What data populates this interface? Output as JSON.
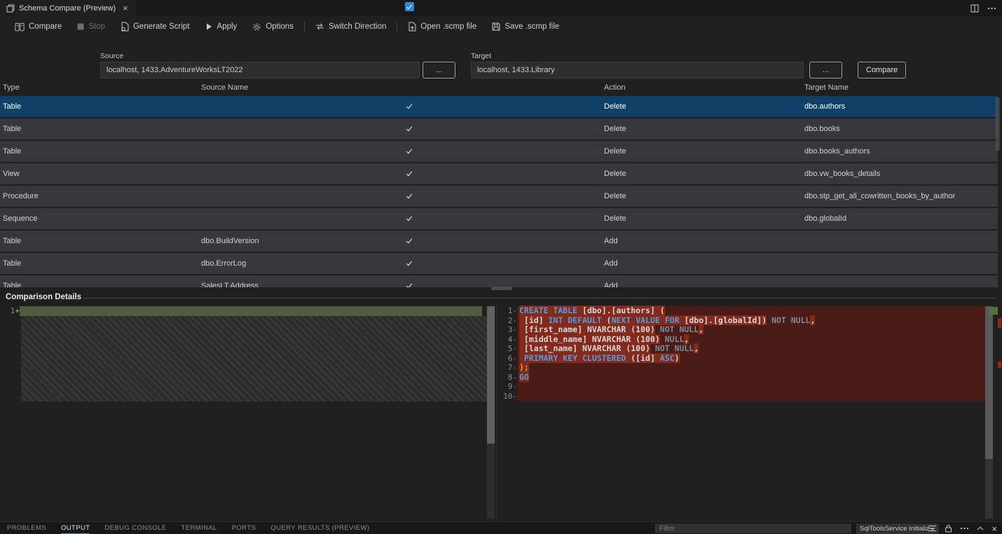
{
  "window": {
    "tab_title": "Schema Compare (Preview)",
    "tab_icon": "schema-compare-icon",
    "tab_close": "×",
    "actions": [
      "split-editor-icon",
      "more-icon"
    ]
  },
  "toolbar": {
    "items": [
      {
        "label": "Compare",
        "icon": "compare-icon",
        "disabled": false
      },
      {
        "label": "Stop",
        "icon": "stop-icon",
        "disabled": true
      },
      {
        "label": "Generate Script",
        "icon": "generate-script-icon",
        "disabled": false
      },
      {
        "label": "Apply",
        "icon": "apply-icon",
        "disabled": false
      },
      {
        "label": "Options",
        "icon": "options-icon",
        "disabled": false
      },
      {
        "separator": true
      },
      {
        "label": "Switch Direction",
        "icon": "switch-direction-icon",
        "disabled": false
      },
      {
        "separator": true
      },
      {
        "label": "Open .scmp file",
        "icon": "open-file-icon",
        "disabled": false
      },
      {
        "label": "Save .scmp file",
        "icon": "save-file-icon",
        "disabled": false
      }
    ]
  },
  "connections": {
    "source_label": "Source",
    "source_value": "localhost, 1433.AdventureWorksLT2022",
    "target_label": "Target",
    "target_value": "localhost, 1433.Library",
    "browse_label": "...",
    "compare_button": "Compare"
  },
  "grid": {
    "headers": {
      "type": "Type",
      "source_name": "Source Name",
      "action": "Action",
      "target_name": "Target Name"
    },
    "select_all_checked": true,
    "rows": [
      {
        "type": "Table",
        "source_name": "",
        "checked": true,
        "action": "Delete",
        "target_name": "dbo.authors",
        "selected": true
      },
      {
        "type": "Table",
        "source_name": "",
        "checked": true,
        "action": "Delete",
        "target_name": "dbo.books",
        "selected": false
      },
      {
        "type": "Table",
        "source_name": "",
        "checked": true,
        "action": "Delete",
        "target_name": "dbo.books_authors",
        "selected": false
      },
      {
        "type": "View",
        "source_name": "",
        "checked": true,
        "action": "Delete",
        "target_name": "dbo.vw_books_details",
        "selected": false
      },
      {
        "type": "Procedure",
        "source_name": "",
        "checked": true,
        "action": "Delete",
        "target_name": "dbo.stp_get_all_cowritten_books_by_author",
        "selected": false
      },
      {
        "type": "Sequence",
        "source_name": "",
        "checked": true,
        "action": "Delete",
        "target_name": "dbo.globalId",
        "selected": false
      },
      {
        "type": "Table",
        "source_name": "dbo.BuildVersion",
        "checked": true,
        "action": "Add",
        "target_name": "",
        "selected": false
      },
      {
        "type": "Table",
        "source_name": "dbo.ErrorLog",
        "checked": true,
        "action": "Add",
        "target_name": "",
        "selected": false
      },
      {
        "type": "Table",
        "source_name": "SalesLT.Address",
        "checked": true,
        "action": "Add",
        "target_name": "",
        "selected": false
      }
    ]
  },
  "comparison": {
    "title": "Comparison Details",
    "left_lines": [
      {
        "num": "1",
        "sign": "+",
        "added": true,
        "segments": []
      }
    ],
    "right_lines": [
      {
        "num": "1",
        "sign": "-",
        "segments": [
          {
            "t": "CREATE TABLE ",
            "c": "kw",
            "hl": true
          },
          {
            "t": "[dbo].[authors] (",
            "c": "id",
            "hl": true
          }
        ]
      },
      {
        "num": "2",
        "sign": "-",
        "segments": [
          {
            "t": " [id] ",
            "c": "id",
            "hl": true
          },
          {
            "t": "INT DEFAULT ",
            "c": "kw",
            "hl": true
          },
          {
            "t": "(",
            "c": "id",
            "hl": true
          },
          {
            "t": "NEXT VALUE FOR ",
            "c": "kw",
            "hl": true
          },
          {
            "t": "[dbo].[globalId])",
            "c": "id",
            "hl": true
          },
          {
            "t": " NOT NULL",
            "c": "dim",
            "hl": false
          },
          {
            "t": ",",
            "c": "id",
            "hl": true
          }
        ]
      },
      {
        "num": "3",
        "sign": "-",
        "segments": [
          {
            "t": " [first_name] NVARCHAR (100)",
            "c": "id",
            "hl": true
          },
          {
            "t": " NOT NULL",
            "c": "dim",
            "hl": false
          },
          {
            "t": ",",
            "c": "id",
            "hl": true
          }
        ]
      },
      {
        "num": "4",
        "sign": "-",
        "segments": [
          {
            "t": " [middle_name] NVARCHAR (100)",
            "c": "id",
            "hl": true
          },
          {
            "t": " NULL",
            "c": "dim",
            "hl": false
          },
          {
            "t": ",",
            "c": "id",
            "hl": true
          }
        ]
      },
      {
        "num": "5",
        "sign": "-",
        "segments": [
          {
            "t": " [last_name] NVARCHAR (100)",
            "c": "id",
            "hl": true
          },
          {
            "t": " NOT NULL",
            "c": "dim",
            "hl": false
          },
          {
            "t": ",",
            "c": "id",
            "hl": true
          }
        ]
      },
      {
        "num": "6",
        "sign": "-",
        "segments": [
          {
            "t": " PRIMARY KEY CLUSTERED ",
            "c": "kw",
            "hl": true
          },
          {
            "t": "([id] ",
            "c": "id",
            "hl": true
          },
          {
            "t": "ASC",
            "c": "kw",
            "hl": true
          },
          {
            "t": ")",
            "c": "id",
            "hl": true
          }
        ]
      },
      {
        "num": "7",
        "sign": "-",
        "segments": [
          {
            "t": ");",
            "c": "gold",
            "hl": true
          }
        ]
      },
      {
        "num": "8",
        "sign": "-",
        "segments": [
          {
            "t": "GO",
            "c": "kw",
            "hl": true
          }
        ]
      },
      {
        "num": "9",
        "sign": "-",
        "segments": []
      },
      {
        "num": "10",
        "sign": "-",
        "segments": []
      }
    ]
  },
  "panel": {
    "tabs": [
      {
        "label": "PROBLEMS",
        "active": false
      },
      {
        "label": "OUTPUT",
        "active": true
      },
      {
        "label": "DEBUG CONSOLE",
        "active": false
      },
      {
        "label": "TERMINAL",
        "active": false
      },
      {
        "label": "PORTS",
        "active": false
      },
      {
        "label": "QUERY RESULTS (PREVIEW)",
        "active": false
      }
    ],
    "filter_placeholder": "Filter",
    "channel_selected": "SqlToolsService Initializ",
    "icons": [
      "clear-output-icon",
      "lock-icon",
      "more-icon",
      "chevron-up-icon",
      "close-icon"
    ]
  }
}
